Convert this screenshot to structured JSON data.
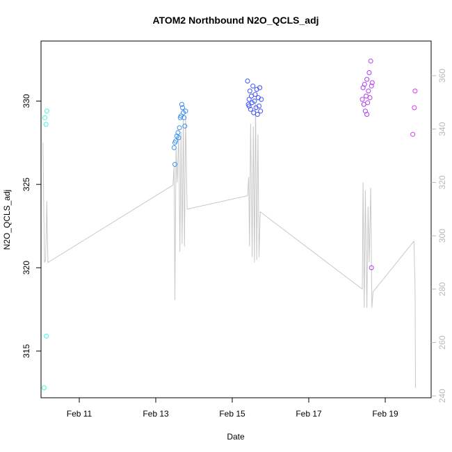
{
  "chart_data": {
    "type": "scatter",
    "title": "ATOM2 Northbound N2O_QCLS_adj",
    "xlabel": "Date",
    "ylabel": "N2O_QCLS_adj",
    "x_ticks": [
      "Feb 11",
      "Feb 13",
      "Feb 15",
      "Feb 17",
      "Feb 19"
    ],
    "y_left": {
      "ticks": [
        315,
        320,
        325,
        330
      ],
      "range": [
        312.2,
        333.6
      ]
    },
    "y_right": {
      "ticks": [
        240,
        260,
        280,
        300,
        320,
        340,
        360
      ],
      "range": [
        239.3,
        373.0
      ],
      "color": "#b8b8b8"
    },
    "x_range": [
      10.0,
      20.2
    ],
    "grid": false,
    "colors": {
      "line": "#c8c8c8",
      "points_start": "#33ffdd",
      "points_mid": "#3b4fff",
      "points_end": "#ee33ee"
    },
    "series": [
      {
        "kind": "points",
        "axis": "left",
        "points": [
          [
            10.08,
            312.8
          ],
          [
            10.1,
            329.0
          ],
          [
            10.13,
            328.6
          ],
          [
            10.15,
            329.4
          ],
          [
            10.14,
            315.9
          ],
          [
            13.5,
            326.2
          ],
          [
            13.48,
            327.2
          ],
          [
            13.52,
            327.6
          ],
          [
            13.55,
            327.9
          ],
          [
            13.58,
            328.1
          ],
          [
            13.6,
            327.8
          ],
          [
            13.62,
            328.4
          ],
          [
            13.64,
            329.0
          ],
          [
            13.66,
            329.1
          ],
          [
            13.68,
            329.8
          ],
          [
            13.7,
            329.6
          ],
          [
            13.72,
            329.3
          ],
          [
            13.74,
            329.0
          ],
          [
            13.76,
            328.5
          ],
          [
            13.78,
            329.4
          ],
          [
            13.5,
            327.5
          ],
          [
            15.4,
            331.2
          ],
          [
            15.42,
            329.8
          ],
          [
            15.44,
            330.1
          ],
          [
            15.46,
            330.6
          ],
          [
            15.48,
            329.5
          ],
          [
            15.5,
            330.3
          ],
          [
            15.52,
            329.9
          ],
          [
            15.54,
            330.9
          ],
          [
            15.56,
            329.3
          ],
          [
            15.58,
            330.0
          ],
          [
            15.6,
            330.4
          ],
          [
            15.62,
            329.6
          ],
          [
            15.64,
            330.7
          ],
          [
            15.66,
            329.2
          ],
          [
            15.68,
            330.2
          ],
          [
            15.7,
            329.7
          ],
          [
            15.72,
            330.8
          ],
          [
            15.74,
            329.4
          ],
          [
            15.76,
            330.1
          ],
          [
            15.44,
            329.7
          ],
          [
            18.4,
            330.1
          ],
          [
            18.42,
            330.8
          ],
          [
            18.44,
            329.8
          ],
          [
            18.46,
            331.0
          ],
          [
            18.48,
            329.4
          ],
          [
            18.5,
            330.3
          ],
          [
            18.52,
            331.3
          ],
          [
            18.54,
            329.9
          ],
          [
            18.56,
            330.6
          ],
          [
            18.58,
            331.7
          ],
          [
            18.6,
            330.2
          ],
          [
            18.62,
            332.4
          ],
          [
            18.64,
            330.9
          ],
          [
            18.66,
            331.1
          ],
          [
            18.52,
            329.2
          ],
          [
            18.64,
            320.0
          ],
          [
            19.72,
            328.0
          ],
          [
            19.76,
            329.6
          ],
          [
            19.78,
            330.6
          ]
        ]
      },
      {
        "kind": "line",
        "axis": "right",
        "points": [
          [
            10.05,
            335
          ],
          [
            10.09,
            290
          ],
          [
            10.12,
            291
          ],
          [
            10.15,
            313
          ],
          [
            10.18,
            290
          ],
          [
            13.45,
            319
          ],
          [
            13.48,
            326
          ],
          [
            13.5,
            276
          ],
          [
            13.53,
            333
          ],
          [
            13.56,
            320
          ],
          [
            13.6,
            338
          ],
          [
            13.63,
            294
          ],
          [
            13.66,
            339
          ],
          [
            13.69,
            297
          ],
          [
            13.72,
            344
          ],
          [
            13.75,
            296
          ],
          [
            13.78,
            345
          ],
          [
            13.82,
            310
          ],
          [
            15.4,
            315
          ],
          [
            15.43,
            322
          ],
          [
            15.45,
            296
          ],
          [
            15.48,
            342
          ],
          [
            15.52,
            292
          ],
          [
            15.55,
            341
          ],
          [
            15.58,
            290
          ],
          [
            15.61,
            350
          ],
          [
            15.64,
            291
          ],
          [
            15.67,
            338
          ],
          [
            15.7,
            292
          ],
          [
            15.73,
            309
          ],
          [
            18.4,
            280
          ],
          [
            18.42,
            320
          ],
          [
            18.45,
            273
          ],
          [
            18.48,
            317
          ],
          [
            18.52,
            273
          ],
          [
            18.55,
            311
          ],
          [
            18.58,
            290
          ],
          [
            18.62,
            318
          ],
          [
            18.65,
            273
          ],
          [
            18.68,
            279
          ],
          [
            19.75,
            298
          ],
          [
            19.78,
            280
          ],
          [
            19.79,
            243
          ]
        ]
      }
    ]
  }
}
